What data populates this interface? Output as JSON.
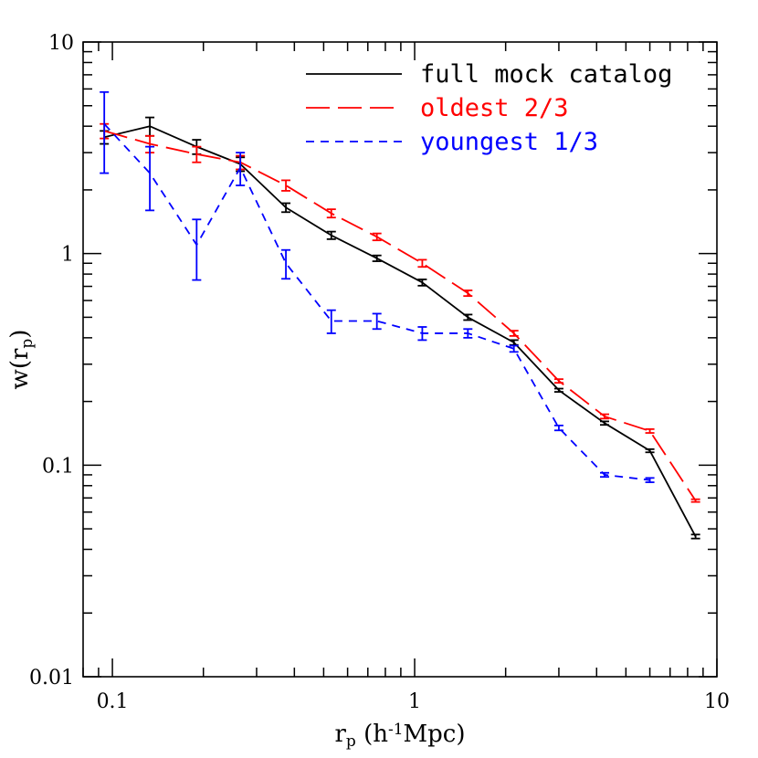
{
  "chart_data": {
    "type": "line",
    "title": "",
    "xlabel": "r_p (h^-1Mpc)",
    "ylabel": "w(r_p)",
    "x_scale": "log",
    "y_scale": "log",
    "xlim": [
      0.08,
      10
    ],
    "ylim": [
      0.01,
      10
    ],
    "x_ticklabels": [
      {
        "value": 0.1,
        "label": "0.1"
      },
      {
        "value": 1,
        "label": "1"
      },
      {
        "value": 10,
        "label": "10"
      }
    ],
    "y_ticklabels": [
      {
        "value": 0.01,
        "label": "0.01"
      },
      {
        "value": 0.1,
        "label": "0.1"
      },
      {
        "value": 1,
        "label": "1"
      },
      {
        "value": 10,
        "label": "10"
      }
    ],
    "grid": false,
    "legend_position": "top-right",
    "series": [
      {
        "name": "full mock catalog",
        "color": "#000000",
        "dash": "solid",
        "x": [
          0.094,
          0.133,
          0.19,
          0.265,
          0.375,
          0.53,
          0.75,
          1.06,
          1.5,
          2.13,
          3.0,
          4.25,
          6.0,
          8.5
        ],
        "y": [
          3.55,
          4.0,
          3.2,
          2.65,
          1.65,
          1.22,
          0.95,
          0.73,
          0.5,
          0.38,
          0.226,
          0.158,
          0.117,
          0.046
        ],
        "err": [
          0.25,
          0.4,
          0.25,
          0.2,
          0.08,
          0.05,
          0.03,
          0.025,
          0.015,
          0.01,
          0.004,
          0.003,
          0.002,
          0.001
        ]
      },
      {
        "name": "oldest 2/3",
        "color": "#ff0000",
        "dash": "long-dash",
        "x": [
          0.094,
          0.133,
          0.19,
          0.265,
          0.375,
          0.53,
          0.75,
          1.06,
          1.5,
          2.13,
          3.0,
          4.25,
          6.0,
          8.5
        ],
        "y": [
          3.8,
          3.3,
          2.95,
          2.7,
          2.1,
          1.55,
          1.2,
          0.9,
          0.65,
          0.42,
          0.25,
          0.17,
          0.145,
          0.068
        ],
        "err": [
          0.3,
          0.3,
          0.25,
          0.2,
          0.12,
          0.07,
          0.045,
          0.035,
          0.02,
          0.012,
          0.005,
          0.004,
          0.003,
          0.001
        ]
      },
      {
        "name": "youngest 1/3",
        "color": "#0000ff",
        "dash": "short-dash",
        "x": [
          0.094,
          0.133,
          0.19,
          0.265,
          0.375,
          0.53,
          0.75,
          1.06,
          1.5,
          2.13,
          3.0,
          4.25,
          6.0
        ],
        "y": [
          4.1,
          2.4,
          1.1,
          2.55,
          0.9,
          0.48,
          0.48,
          0.42,
          0.42,
          0.355,
          0.15,
          0.09,
          0.085
        ],
        "err": [
          1.7,
          0.8,
          0.35,
          0.45,
          0.14,
          0.06,
          0.04,
          0.03,
          0.02,
          0.012,
          0.004,
          0.002,
          0.002
        ]
      }
    ]
  }
}
